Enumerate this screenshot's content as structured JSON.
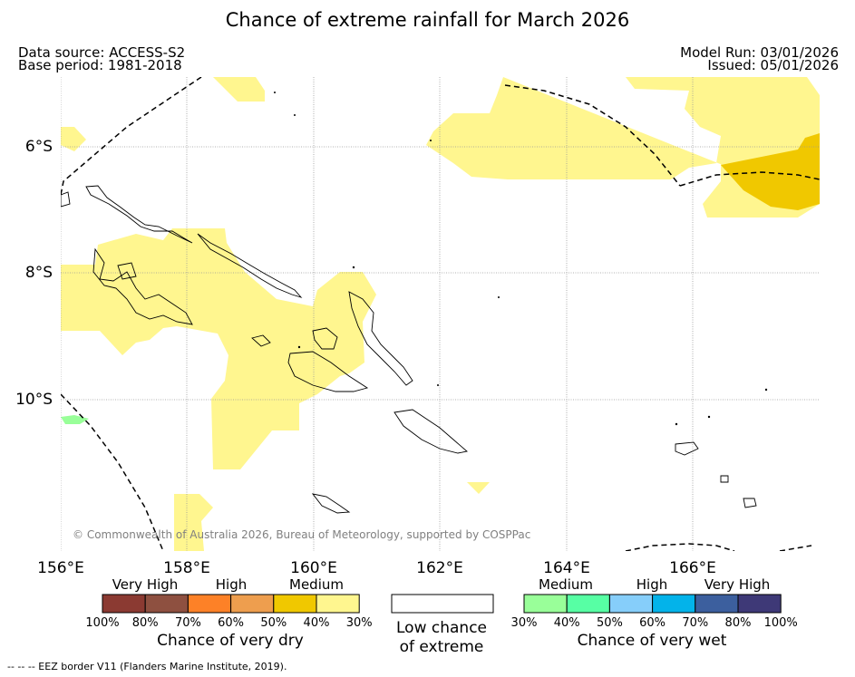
{
  "title": "Chance of extreme rainfall for March 2026",
  "meta": {
    "data_source": "Data source: ACCESS-S2",
    "base_period": "Base period: 1981-2018",
    "model_run": "Model Run: 03/01/2026",
    "issued": "Issued: 05/01/2026"
  },
  "map": {
    "lat_labels": [
      "6°S",
      "8°S",
      "10°S"
    ],
    "lon_labels": [
      "156°E",
      "158°E",
      "160°E",
      "162°E",
      "164°E",
      "166°E"
    ],
    "copyright": "© Commonwealth of Australia 2026, Bureau of Meteorology, supported by COSPPac"
  },
  "legend": {
    "dry": {
      "groups": [
        "Very High",
        "High",
        "Medium"
      ],
      "ticks": [
        "100%",
        "80%",
        "70%",
        "60%",
        "50%",
        "40%",
        "30%"
      ],
      "colors": [
        "#8b3a32",
        "#8e5040",
        "#fd8127",
        "#ee9e4e",
        "#f0c800",
        "#fff68f"
      ],
      "caption": "Chance of very dry"
    },
    "low": {
      "caption_line1": "Low chance",
      "caption_line2": "of extreme"
    },
    "wet": {
      "groups": [
        "Medium",
        "High",
        "Very High"
      ],
      "ticks": [
        "30%",
        "40%",
        "50%",
        "60%",
        "70%",
        "80%",
        "100%"
      ],
      "colors": [
        "#99ff99",
        "#57ffa4",
        "#86cefa",
        "#03b3ea",
        "#3c5f9e",
        "#3e3977"
      ],
      "caption": "Chance of very wet"
    }
  },
  "footer": "--  --  -- EEZ border V11 (Flanders Marine Institute, 2019)."
}
